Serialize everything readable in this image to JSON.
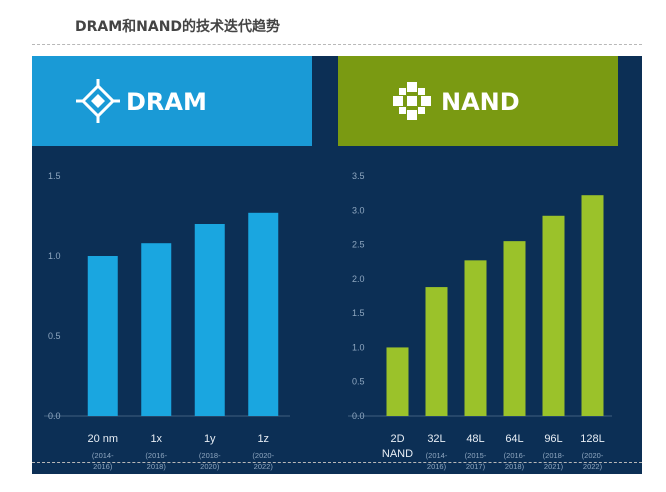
{
  "page": {
    "title": "DRAM和NAND的技术迭代趋势"
  },
  "colors": {
    "background": "#0c2f55",
    "dram_header": "#1a9ad6",
    "dram_bar": "#1aa6e0",
    "nand_header": "#7a9a12",
    "nand_bar": "#9bc22a",
    "axis_text": "#8fa7c0",
    "category_text": "#e8eef5"
  },
  "chart_data": [
    {
      "type": "bar",
      "title": "DRAM",
      "icon": "dram-chip-icon",
      "categories": [
        "20 nm",
        "1x",
        "1y",
        "1z"
      ],
      "category_years": [
        "(2014-\n2016)",
        "(2016-\n2018)",
        "(2018-\n2020)",
        "(2020-\n2022)"
      ],
      "values": [
        1.0,
        1.08,
        1.2,
        1.27
      ],
      "ylim": [
        0,
        1.5
      ],
      "yticks": [
        "0.0",
        "0.5",
        "1.0",
        "1.5"
      ],
      "xlabel": "",
      "ylabel": "",
      "grid": false
    },
    {
      "type": "bar",
      "title": "NAND",
      "icon": "nand-chip-icon",
      "categories": [
        "2D\nNAND",
        "32L",
        "48L",
        "64L",
        "96L",
        "128L"
      ],
      "category_years": [
        "",
        "(2014-\n2016)",
        "(2015-\n2017)",
        "(2016-\n2018)",
        "(2018-\n2021)",
        "(2020-\n2022)"
      ],
      "values": [
        1.0,
        1.88,
        2.27,
        2.55,
        2.92,
        3.22
      ],
      "ylim": [
        0,
        3.5
      ],
      "yticks": [
        "0.0",
        "0.5",
        "1.0",
        "1.5",
        "2.0",
        "2.5",
        "3.0",
        "3.5"
      ],
      "xlabel": "",
      "ylabel": "",
      "grid": false
    }
  ]
}
